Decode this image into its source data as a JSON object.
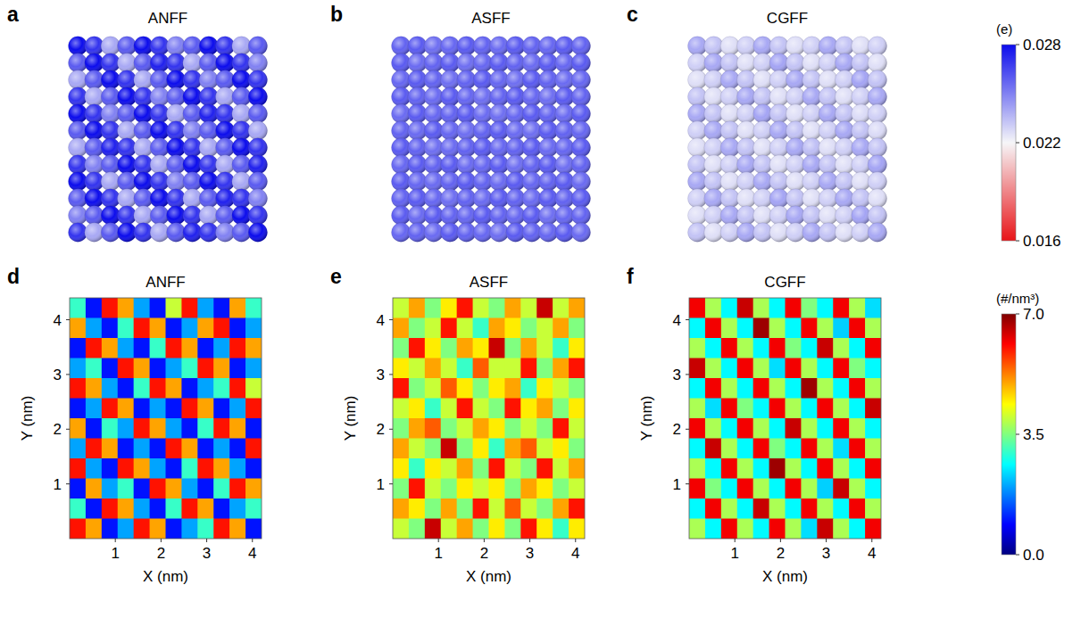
{
  "chart_data": [
    {
      "panel": "a",
      "type": "atoms",
      "title": "ANFF",
      "charges": [
        [
          0.028,
          0.027,
          0.024,
          0.026,
          0.028,
          0.027,
          0.025,
          0.026,
          0.028,
          0.027,
          0.024,
          0.026
        ],
        [
          0.026,
          0.028,
          0.027,
          0.024,
          0.026,
          0.0275,
          0.027,
          0.024,
          0.026,
          0.028,
          0.027,
          0.025
        ],
        [
          0.024,
          0.026,
          0.028,
          0.027,
          0.024,
          0.026,
          0.028,
          0.027,
          0.025,
          0.026,
          0.028,
          0.027
        ],
        [
          0.027,
          0.024,
          0.026,
          0.028,
          0.027,
          0.025,
          0.026,
          0.028,
          0.027,
          0.024,
          0.026,
          0.028
        ],
        [
          0.028,
          0.027,
          0.025,
          0.026,
          0.028,
          0.027,
          0.024,
          0.026,
          0.0275,
          0.027,
          0.024,
          0.026
        ],
        [
          0.026,
          0.028,
          0.027,
          0.024,
          0.026,
          0.028,
          0.027,
          0.025,
          0.026,
          0.028,
          0.027,
          0.024
        ],
        [
          0.024,
          0.026,
          0.0275,
          0.027,
          0.024,
          0.026,
          0.028,
          0.027,
          0.024,
          0.026,
          0.028,
          0.027
        ],
        [
          0.027,
          0.025,
          0.026,
          0.028,
          0.027,
          0.024,
          0.026,
          0.028,
          0.027,
          0.024,
          0.026,
          0.0275
        ],
        [
          0.028,
          0.027,
          0.024,
          0.026,
          0.028,
          0.027,
          0.025,
          0.026,
          0.028,
          0.027,
          0.024,
          0.026
        ],
        [
          0.026,
          0.028,
          0.027,
          0.024,
          0.026,
          0.028,
          0.027,
          0.024,
          0.026,
          0.0275,
          0.027,
          0.025
        ],
        [
          0.025,
          0.026,
          0.028,
          0.027,
          0.024,
          0.026,
          0.028,
          0.027,
          0.024,
          0.026,
          0.028,
          0.027
        ],
        [
          0.027,
          0.024,
          0.026,
          0.028,
          0.027,
          0.024,
          0.026,
          0.0275,
          0.027,
          0.025,
          0.026,
          0.028
        ]
      ]
    },
    {
      "panel": "b",
      "type": "atoms",
      "title": "ASFF",
      "charges": [
        [
          0.0258,
          0.026,
          0.0255,
          0.0257,
          0.026,
          0.0258,
          0.0256,
          0.026,
          0.0258,
          0.0257,
          0.026,
          0.0258
        ],
        [
          0.026,
          0.0256,
          0.0258,
          0.026,
          0.0255,
          0.0257,
          0.026,
          0.0258,
          0.0256,
          0.026,
          0.0257,
          0.026
        ],
        [
          0.0257,
          0.026,
          0.0258,
          0.0255,
          0.0258,
          0.026,
          0.0257,
          0.0255,
          0.026,
          0.0258,
          0.0256,
          0.0257
        ],
        [
          0.026,
          0.0258,
          0.0256,
          0.026,
          0.0257,
          0.0255,
          0.0258,
          0.026,
          0.0257,
          0.0255,
          0.026,
          0.0258
        ],
        [
          0.0256,
          0.026,
          0.0257,
          0.0258,
          0.026,
          0.0256,
          0.0255,
          0.0257,
          0.026,
          0.0258,
          0.0256,
          0.026
        ],
        [
          0.0258,
          0.0256,
          0.026,
          0.0257,
          0.0255,
          0.0258,
          0.026,
          0.0256,
          0.0255,
          0.026,
          0.0258,
          0.0257
        ],
        [
          0.026,
          0.0258,
          0.0255,
          0.0256,
          0.0258,
          0.026,
          0.0257,
          0.0258,
          0.026,
          0.0256,
          0.0257,
          0.026
        ],
        [
          0.0257,
          0.026,
          0.0258,
          0.026,
          0.0256,
          0.0257,
          0.026,
          0.0255,
          0.0258,
          0.026,
          0.0255,
          0.0258
        ],
        [
          0.026,
          0.0257,
          0.0256,
          0.0258,
          0.026,
          0.0258,
          0.0256,
          0.026,
          0.0257,
          0.0258,
          0.026,
          0.0256
        ],
        [
          0.0258,
          0.026,
          0.0257,
          0.0255,
          0.0258,
          0.0256,
          0.026,
          0.0258,
          0.0256,
          0.026,
          0.0258,
          0.026
        ],
        [
          0.026,
          0.0256,
          0.026,
          0.0258,
          0.0257,
          0.026,
          0.0258,
          0.0257,
          0.026,
          0.0255,
          0.0257,
          0.0258
        ],
        [
          0.0257,
          0.0258,
          0.0256,
          0.026,
          0.0258,
          0.0257,
          0.0255,
          0.026,
          0.0258,
          0.0257,
          0.026,
          0.0256
        ]
      ]
    },
    {
      "panel": "c",
      "type": "atoms",
      "title": "CGFF",
      "charges": [
        [
          0.024,
          0.0233,
          0.0226,
          0.023,
          0.024,
          0.0233,
          0.0226,
          0.023,
          0.024,
          0.0233,
          0.0226,
          0.023
        ],
        [
          0.023,
          0.024,
          0.0233,
          0.0226,
          0.023,
          0.0241,
          0.0233,
          0.0226,
          0.023,
          0.024,
          0.0233,
          0.0226
        ],
        [
          0.0226,
          0.023,
          0.024,
          0.0233,
          0.0226,
          0.023,
          0.024,
          0.0233,
          0.0226,
          0.023,
          0.0241,
          0.0233
        ],
        [
          0.0233,
          0.0226,
          0.023,
          0.024,
          0.0233,
          0.0226,
          0.023,
          0.024,
          0.0233,
          0.0226,
          0.023,
          0.024
        ],
        [
          0.024,
          0.0233,
          0.0226,
          0.023,
          0.0241,
          0.0233,
          0.0226,
          0.023,
          0.024,
          0.0233,
          0.0227,
          0.023
        ],
        [
          0.023,
          0.024,
          0.0233,
          0.0226,
          0.023,
          0.024,
          0.0233,
          0.0226,
          0.023,
          0.024,
          0.0233,
          0.0227
        ],
        [
          0.0226,
          0.023,
          0.024,
          0.0233,
          0.0226,
          0.023,
          0.024,
          0.0234,
          0.0226,
          0.023,
          0.024,
          0.0233
        ],
        [
          0.0233,
          0.0226,
          0.023,
          0.024,
          0.0233,
          0.0226,
          0.023,
          0.024,
          0.0233,
          0.0226,
          0.023,
          0.0241
        ],
        [
          0.024,
          0.0233,
          0.0226,
          0.023,
          0.024,
          0.0233,
          0.0226,
          0.023,
          0.024,
          0.0233,
          0.0226,
          0.023
        ],
        [
          0.023,
          0.024,
          0.0233,
          0.0226,
          0.023,
          0.0241,
          0.0233,
          0.0226,
          0.023,
          0.024,
          0.0233,
          0.0226
        ],
        [
          0.0226,
          0.023,
          0.024,
          0.0233,
          0.0226,
          0.023,
          0.024,
          0.0233,
          0.0226,
          0.023,
          0.0241,
          0.0233
        ],
        [
          0.0233,
          0.0226,
          0.023,
          0.024,
          0.0233,
          0.0226,
          0.023,
          0.024,
          0.0233,
          0.0226,
          0.023,
          0.024
        ]
      ],
      "colorbar": {
        "range": [
          0.016,
          0.028
        ],
        "ticks": [
          0.016,
          0.022,
          0.028
        ],
        "label": "(e)"
      }
    },
    {
      "panel": "d",
      "type": "heatmap",
      "title": "ANFF",
      "x_label": "X (nm)",
      "y_label": "Y (nm)",
      "xlim": [
        0,
        4.2
      ],
      "ylim": [
        0,
        4.4
      ],
      "xticks": [
        1,
        2,
        3,
        4
      ],
      "yticks": [
        1,
        2,
        3,
        4
      ],
      "cells": [
        [
          3,
          1,
          6,
          5,
          2,
          1,
          4,
          6,
          2,
          1,
          5,
          3
        ],
        [
          5,
          2,
          1,
          3,
          6,
          5,
          1,
          2,
          5,
          6,
          1,
          2
        ],
        [
          1,
          6,
          5,
          2,
          1,
          3,
          6,
          5,
          1,
          2,
          6,
          5
        ],
        [
          2,
          3,
          1,
          6,
          5,
          1,
          2,
          3,
          6,
          5,
          1,
          2
        ],
        [
          6,
          5,
          2,
          1,
          3,
          6,
          5,
          1,
          2,
          3,
          6,
          4
        ],
        [
          1,
          2,
          6,
          5,
          1,
          2,
          1,
          6,
          5,
          1,
          2,
          6
        ],
        [
          5,
          1,
          3,
          2,
          6,
          5,
          2,
          1,
          3,
          6,
          5,
          1
        ],
        [
          2,
          6,
          5,
          1,
          2,
          1,
          6,
          5,
          1,
          2,
          1,
          6
        ],
        [
          6,
          2,
          1,
          6,
          5,
          2,
          1,
          3,
          6,
          5,
          2,
          1
        ],
        [
          1,
          5,
          2,
          3,
          1,
          6,
          5,
          2,
          1,
          3,
          6,
          5
        ],
        [
          3,
          1,
          6,
          5,
          2,
          1,
          3,
          6,
          5,
          1,
          2,
          3
        ],
        [
          6,
          5,
          1,
          2,
          6,
          5,
          1,
          2,
          3,
          6,
          5,
          1
        ]
      ]
    },
    {
      "panel": "e",
      "type": "heatmap",
      "title": "ASFF",
      "x_label": "X (nm)",
      "y_label": "Y (nm)",
      "xlim": [
        0,
        4.2
      ],
      "ylim": [
        0,
        4.4
      ],
      "xticks": [
        1,
        2,
        3,
        4
      ],
      "yticks": [
        1,
        2,
        3,
        4
      ],
      "cells": [
        [
          4,
          5,
          3.5,
          4.5,
          6,
          4,
          3.5,
          5,
          4,
          6.5,
          4,
          5
        ],
        [
          5,
          3.5,
          4,
          6,
          4,
          3,
          5,
          4.5,
          3.5,
          4,
          5,
          3.5
        ],
        [
          3.5,
          6,
          4.5,
          3.5,
          5,
          4.5,
          6.5,
          3.5,
          5,
          4,
          3,
          4.5
        ],
        [
          4.5,
          4,
          5,
          4,
          3,
          5.5,
          4,
          4,
          6,
          3.5,
          5,
          6
        ],
        [
          6,
          3.5,
          4,
          5.5,
          4.5,
          3.5,
          4.5,
          5,
          3,
          4.5,
          4,
          3.5
        ],
        [
          4,
          4.5,
          3,
          4,
          6,
          4,
          3.5,
          6,
          4.5,
          5,
          3.5,
          4.5
        ],
        [
          3.5,
          5,
          5.5,
          3.5,
          4,
          5,
          4.5,
          3.5,
          4,
          3.5,
          6,
          4
        ],
        [
          5,
          4,
          3.5,
          6.5,
          3.5,
          4.5,
          3,
          5,
          5.5,
          4,
          4.5,
          3.5
        ],
        [
          4.5,
          3,
          4.5,
          4,
          5,
          3.5,
          6,
          4,
          3.5,
          6,
          4,
          5
        ],
        [
          3.5,
          6,
          4,
          3.5,
          4.5,
          4,
          4.5,
          3.5,
          5,
          4.5,
          3.5,
          4
        ],
        [
          5,
          4.5,
          3.5,
          5,
          3.5,
          6,
          4,
          5.5,
          4,
          3.5,
          5,
          6
        ],
        [
          4,
          3.5,
          6.5,
          4,
          5,
          3.5,
          4.5,
          3.5,
          6,
          4.5,
          3,
          4.5
        ]
      ]
    },
    {
      "panel": "f",
      "type": "heatmap",
      "title": "CGFF",
      "x_label": "X (nm)",
      "y_label": "Y (nm)",
      "xlim": [
        0,
        4.2
      ],
      "ylim": [
        0,
        4.4
      ],
      "xticks": [
        1,
        2,
        3,
        4
      ],
      "yticks": [
        1,
        2,
        3,
        4
      ],
      "cells": [
        [
          6.2,
          3.8,
          2.6,
          6.5,
          3.8,
          2.6,
          6.2,
          3.5,
          2.6,
          6.2,
          3.8,
          2.4
        ],
        [
          2.6,
          6.2,
          3.8,
          2.6,
          6.8,
          3.8,
          2.6,
          6.2,
          3.8,
          2.3,
          6.2,
          3.8
        ],
        [
          3.8,
          2.6,
          6.2,
          3.8,
          2.6,
          6.2,
          3.5,
          2.6,
          6.5,
          3.8,
          2.6,
          6.2
        ],
        [
          6.5,
          3.8,
          2.6,
          6.2,
          3.8,
          2.4,
          6.2,
          3.8,
          2.6,
          6.2,
          3.5,
          2.6
        ],
        [
          2.6,
          6.2,
          3.8,
          2.6,
          6.2,
          3.8,
          2.6,
          6.8,
          3.8,
          2.6,
          6.2,
          3.8
        ],
        [
          3.8,
          2.4,
          6.2,
          3.5,
          2.6,
          6.2,
          3.8,
          2.6,
          6.2,
          3.8,
          2.6,
          6.5
        ],
        [
          6.2,
          3.8,
          2.6,
          6.2,
          3.8,
          2.6,
          6.5,
          3.8,
          2.6,
          6.2,
          3.8,
          2.6
        ],
        [
          2.6,
          6.5,
          3.8,
          2.6,
          6.2,
          3.5,
          2.6,
          6.2,
          3.8,
          2.4,
          6.2,
          3.8
        ],
        [
          3.8,
          2.6,
          6.2,
          3.8,
          2.6,
          6.8,
          3.8,
          2.6,
          6.2,
          3.8,
          2.6,
          6.2
        ],
        [
          6.2,
          3.5,
          2.6,
          6.2,
          3.8,
          2.6,
          6.2,
          3.8,
          2.3,
          6.5,
          3.8,
          2.6
        ],
        [
          2.6,
          6.2,
          3.8,
          2.6,
          6.5,
          3.8,
          2.6,
          6.2,
          3.8,
          2.6,
          6.2,
          3.8
        ],
        [
          3.8,
          2.6,
          6.2,
          3.8,
          2.6,
          6.2,
          3.8,
          2.4,
          6.5,
          3.8,
          2.6,
          6.2
        ]
      ],
      "colorbar": {
        "range": [
          0,
          7
        ],
        "ticks": [
          {
            "value": 0,
            "label": "0.0"
          },
          3.5,
          {
            "value": 7,
            "label": "7.0"
          }
        ],
        "label": "(#/nm³)"
      }
    }
  ]
}
